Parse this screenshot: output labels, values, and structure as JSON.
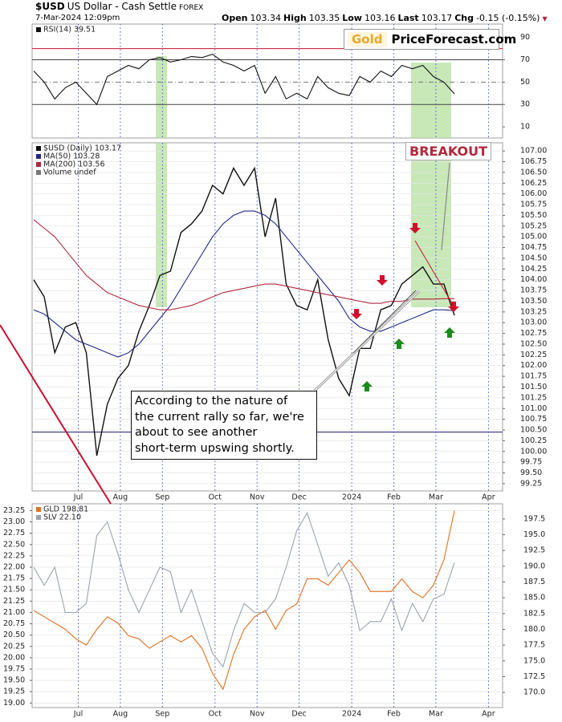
{
  "header": {
    "symbol": "$USD",
    "name": "US Dollar - Cash Settle",
    "exchange": "FOREX",
    "date": "7-Mar-2024 12:09pm",
    "quote": [
      {
        "label": "Open",
        "value": 103.34
      },
      {
        "label": "High",
        "value": 103.35
      },
      {
        "label": "Low",
        "value": 103.16
      },
      {
        "label": "Last",
        "value": 103.17
      },
      {
        "label": "Chg",
        "value": "-0.15 (-0.15%)"
      }
    ]
  },
  "logo": {
    "gold": "Gold",
    "site": "PriceForecast.com"
  },
  "chart_data": [
    {
      "type": "line",
      "yaxis_side": "right",
      "ylim": [
        0,
        102
      ],
      "yticks": [
        90,
        70,
        50,
        30,
        10
      ],
      "grid": false,
      "levels": [
        {
          "value": 80,
          "color": "#c8102e",
          "dash": false
        },
        {
          "value": 70,
          "color": "#444",
          "dash": false
        },
        {
          "value": 50,
          "color": "#777",
          "dash": true
        },
        {
          "value": 30,
          "color": "#444",
          "dash": false
        }
      ],
      "series": [
        {
          "name": "RSI(14) 39.51",
          "color": "#111",
          "values": [
            60,
            50,
            35,
            45,
            50,
            40,
            30,
            55,
            60,
            65,
            62,
            70,
            72,
            68,
            70,
            73,
            72,
            75,
            68,
            65,
            60,
            65,
            40,
            55,
            35,
            40,
            35,
            55,
            45,
            40,
            38,
            55,
            50,
            60,
            55,
            65,
            62,
            65,
            55,
            50,
            39.51,
            null,
            null,
            null,
            null
          ]
        }
      ]
    },
    {
      "type": "line",
      "yaxis_side": "right",
      "ylim": [
        99.08,
        107.19
      ],
      "grid": true,
      "yticks": [
        {
          "value": 107,
          "label": "107.00"
        },
        106.75,
        {
          "value": 106.5,
          "label": "106.50"
        },
        106.25,
        {
          "value": 106,
          "label": "106.00"
        },
        105.75,
        {
          "value": 105.5,
          "label": "105.50"
        },
        105.25,
        {
          "value": 105,
          "label": "105.00"
        },
        104.75,
        {
          "value": 104.5,
          "label": "104.50"
        },
        104.25,
        {
          "value": 104,
          "label": "104.00"
        },
        103.75,
        {
          "value": 103.5,
          "label": "103.50"
        },
        103.25,
        {
          "value": 103,
          "label": "103.00"
        },
        102.75,
        {
          "value": 102.5,
          "label": "102.50"
        },
        102.25,
        {
          "value": 102,
          "label": "102.00"
        },
        101.75,
        {
          "value": 101.5,
          "label": "101.50"
        },
        101.25,
        {
          "value": 101,
          "label": "101.00"
        },
        100.75,
        {
          "value": 100.5,
          "label": "100.50"
        },
        100.25,
        {
          "value": 100,
          "label": "100.00"
        },
        99.75,
        {
          "value": 99.5,
          "label": "99.50"
        },
        99.25
      ],
      "categories": [
        null,
        null,
        null,
        null,
        null,
        "Jul",
        null,
        null,
        null,
        "Aug",
        null,
        null,
        null,
        "Sep",
        null,
        null,
        null,
        null,
        "Oct",
        null,
        null,
        null,
        "Nov",
        null,
        null,
        null,
        "Dec",
        null,
        null,
        null,
        null,
        "2024",
        null,
        null,
        null,
        "Feb",
        null,
        null,
        null,
        "Mar",
        null,
        null,
        null,
        null,
        "Apr"
      ],
      "levels": [
        {
          "value": 100.45,
          "color": "#1a1a6e",
          "dash": false
        }
      ],
      "legend_note": "Volume undef",
      "annotation": "BREAKOUT",
      "note": [
        "According to the nature of",
        "the current rally so far, we're",
        "about to see another",
        "short-term upswing shortly."
      ],
      "series": [
        {
          "name": "$USD (Daily) 103.17",
          "color": "#111",
          "values": [
            104.0,
            103.6,
            102.3,
            102.9,
            103.0,
            102.3,
            99.9,
            101.1,
            101.7,
            102.0,
            102.8,
            103.4,
            104.1,
            104.2,
            105.1,
            105.3,
            105.6,
            106.2,
            106.0,
            106.6,
            106.2,
            106.6,
            105.0,
            105.9,
            103.9,
            103.4,
            103.3,
            104.0,
            102.6,
            101.7,
            101.3,
            102.4,
            102.4,
            103.3,
            103.4,
            103.9,
            104.1,
            104.3,
            103.9,
            103.9,
            103.17,
            null,
            null,
            null,
            null
          ]
        },
        {
          "name": "MA(50) 103.28",
          "color": "#1f2a8a",
          "values": [
            103.3,
            103.2,
            103.0,
            102.8,
            102.6,
            102.5,
            102.4,
            102.3,
            102.2,
            102.3,
            102.5,
            102.8,
            103.1,
            103.4,
            103.8,
            104.2,
            104.6,
            105.0,
            105.3,
            105.5,
            105.6,
            105.6,
            105.5,
            105.3,
            105.0,
            104.7,
            104.4,
            104.1,
            103.8,
            103.5,
            103.1,
            102.9,
            102.8,
            102.8,
            102.9,
            103.0,
            103.1,
            103.2,
            103.3,
            103.3,
            103.28,
            null,
            null,
            null,
            null
          ]
        },
        {
          "name": "MA(200) 103.56",
          "color": "#b0283c",
          "values": [
            105.4,
            105.2,
            105.0,
            104.7,
            104.4,
            104.1,
            103.9,
            103.7,
            103.6,
            103.5,
            103.4,
            103.35,
            103.3,
            103.3,
            103.35,
            103.4,
            103.5,
            103.6,
            103.7,
            103.75,
            103.8,
            103.85,
            103.9,
            103.9,
            103.85,
            103.8,
            103.75,
            103.7,
            103.65,
            103.6,
            103.55,
            103.5,
            103.45,
            103.45,
            103.5,
            103.5,
            103.55,
            103.55,
            103.55,
            103.56,
            103.56,
            null,
            null,
            null,
            null
          ]
        }
      ]
    },
    {
      "type": "line",
      "yaxis_side": "left",
      "ylim": [
        18.9,
        23.4
      ],
      "y2lim": [
        167.6,
        199.9
      ],
      "grid": true,
      "yticks": [
        23.25,
        {
          "value": 23,
          "label": "23.00"
        },
        22.75,
        {
          "value": 22.5,
          "label": "22.50"
        },
        22.25,
        {
          "value": 22,
          "label": "22.00"
        },
        21.75,
        {
          "value": 21.5,
          "label": "21.50"
        },
        21.25,
        {
          "value": 21,
          "label": "21.00"
        },
        20.75,
        {
          "value": 20.5,
          "label": "20.50"
        },
        20.25,
        {
          "value": 20,
          "label": "20.00"
        },
        19.75,
        {
          "value": 19.5,
          "label": "19.50"
        },
        19.25,
        {
          "value": 19,
          "label": "19.00"
        }
      ],
      "y2ticks": [
        197.5,
        {
          "value": 195,
          "label": "195.0"
        },
        192.5,
        {
          "value": 190,
          "label": "190.0"
        },
        187.5,
        {
          "value": 185,
          "label": "185.0"
        },
        182.5,
        {
          "value": 180,
          "label": "180.0"
        },
        177.5,
        {
          "value": 175,
          "label": "175.0"
        },
        172.5,
        {
          "value": 170,
          "label": "170.0"
        }
      ],
      "categories": [
        null,
        null,
        null,
        null,
        null,
        "Jul",
        null,
        null,
        null,
        "Aug",
        null,
        null,
        null,
        "Sep",
        null,
        null,
        null,
        null,
        "Oct",
        null,
        null,
        null,
        "Nov",
        null,
        null,
        null,
        "Dec",
        null,
        null,
        null,
        null,
        "2024",
        null,
        null,
        null,
        "Feb",
        null,
        null,
        null,
        "Mar",
        null,
        null,
        null,
        null,
        "Apr"
      ],
      "series": [
        {
          "name": "GLD 198.81",
          "color": "#e07020",
          "axis": "y2",
          "values": [
            183,
            182,
            181,
            180,
            178.5,
            177.5,
            180,
            182,
            181,
            179,
            178.5,
            177,
            178,
            179,
            178,
            179,
            177,
            173,
            170.5,
            176,
            180,
            182,
            183,
            180,
            183,
            184,
            188,
            188,
            187,
            189,
            191,
            189,
            186,
            186,
            186,
            188,
            186,
            185,
            187,
            191,
            198.81,
            null,
            null,
            null,
            null
          ]
        },
        {
          "name": "SLV 22.10",
          "color": "#9aa3ad",
          "values": [
            22.0,
            21.6,
            22.0,
            21.0,
            21.0,
            21.2,
            22.7,
            23.0,
            22.3,
            21.5,
            21.0,
            21.5,
            22.0,
            21.9,
            21.0,
            21.5,
            20.8,
            20.1,
            19.8,
            20.6,
            21.2,
            21.0,
            21.0,
            21.3,
            22.0,
            22.8,
            23.2,
            22.5,
            21.8,
            22.1,
            21.6,
            20.6,
            20.8,
            20.8,
            21.3,
            20.6,
            21.2,
            20.8,
            21.3,
            21.4,
            22.1,
            null,
            null,
            null,
            null
          ]
        }
      ]
    }
  ]
}
